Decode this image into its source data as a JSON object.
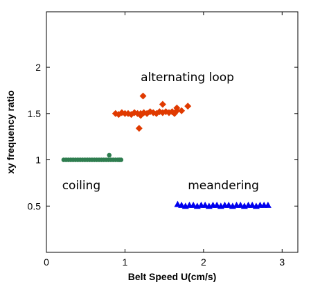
{
  "chart_data": {
    "type": "scatter",
    "title": "",
    "xlabel": "Belt Speed U(cm/s)",
    "ylabel": "xy frequency ratio",
    "xlim": [
      0,
      3.2
    ],
    "ylim": [
      0,
      2.6
    ],
    "x_ticks": [
      0,
      1,
      2,
      3
    ],
    "x_tick_labels": [
      "0",
      "1",
      "2",
      "3"
    ],
    "y_ticks": [
      0.5,
      1,
      1.5,
      2
    ],
    "y_tick_labels": [
      "0.5",
      "1",
      "1.5",
      "2"
    ],
    "grid": false,
    "legend": "none",
    "series": [
      {
        "marker": "circle",
        "color": "#2e7d4f",
        "x": [
          0.22,
          0.25,
          0.28,
          0.31,
          0.34,
          0.37,
          0.4,
          0.43,
          0.46,
          0.49,
          0.52,
          0.55,
          0.58,
          0.61,
          0.64,
          0.67,
          0.7,
          0.73,
          0.76,
          0.79,
          0.8,
          0.82,
          0.85,
          0.88,
          0.91,
          0.93,
          0.95
        ],
        "y": [
          1.0,
          1.0,
          1.0,
          1.0,
          1.0,
          1.0,
          1.0,
          1.0,
          1.0,
          1.0,
          1.0,
          1.0,
          1.0,
          1.0,
          1.0,
          1.0,
          1.0,
          1.0,
          1.0,
          1.0,
          1.05,
          1.0,
          1.0,
          1.0,
          1.0,
          1.0,
          1.0
        ]
      },
      {
        "marker": "diamond",
        "color": "#e03a00",
        "x": [
          0.88,
          0.92,
          0.96,
          1.0,
          1.04,
          1.08,
          1.12,
          1.16,
          1.2,
          1.24,
          1.28,
          1.32,
          1.36,
          1.4,
          1.44,
          1.48,
          1.52,
          1.56,
          1.6,
          1.63,
          1.66,
          1.2,
          1.23,
          1.48,
          1.18,
          1.66,
          1.72,
          1.8
        ],
        "y": [
          1.5,
          1.49,
          1.51,
          1.5,
          1.5,
          1.49,
          1.51,
          1.5,
          1.5,
          1.51,
          1.5,
          1.52,
          1.51,
          1.5,
          1.52,
          1.51,
          1.52,
          1.51,
          1.52,
          1.5,
          1.53,
          1.48,
          1.69,
          1.6,
          1.34,
          1.56,
          1.53,
          1.58
        ]
      },
      {
        "marker": "triangle",
        "color": "#0000ee",
        "x": [
          1.67,
          1.72,
          1.77,
          1.82,
          1.87,
          1.92,
          1.97,
          2.02,
          2.07,
          2.12,
          2.17,
          2.22,
          2.27,
          2.32,
          2.37,
          2.42,
          2.47,
          2.52,
          2.57,
          2.62,
          2.67,
          2.72,
          2.77,
          2.82
        ],
        "y": [
          0.52,
          0.51,
          0.5,
          0.51,
          0.51,
          0.5,
          0.51,
          0.51,
          0.5,
          0.51,
          0.51,
          0.5,
          0.51,
          0.51,
          0.5,
          0.51,
          0.51,
          0.5,
          0.51,
          0.51,
          0.5,
          0.51,
          0.51,
          0.51
        ]
      }
    ],
    "annotations": [
      {
        "text": "alternating loop",
        "x": 1.2,
        "y": 1.85
      },
      {
        "text": "coiling",
        "x": 0.2,
        "y": 0.68
      },
      {
        "text": "meandering",
        "x": 1.8,
        "y": 0.68
      }
    ]
  }
}
